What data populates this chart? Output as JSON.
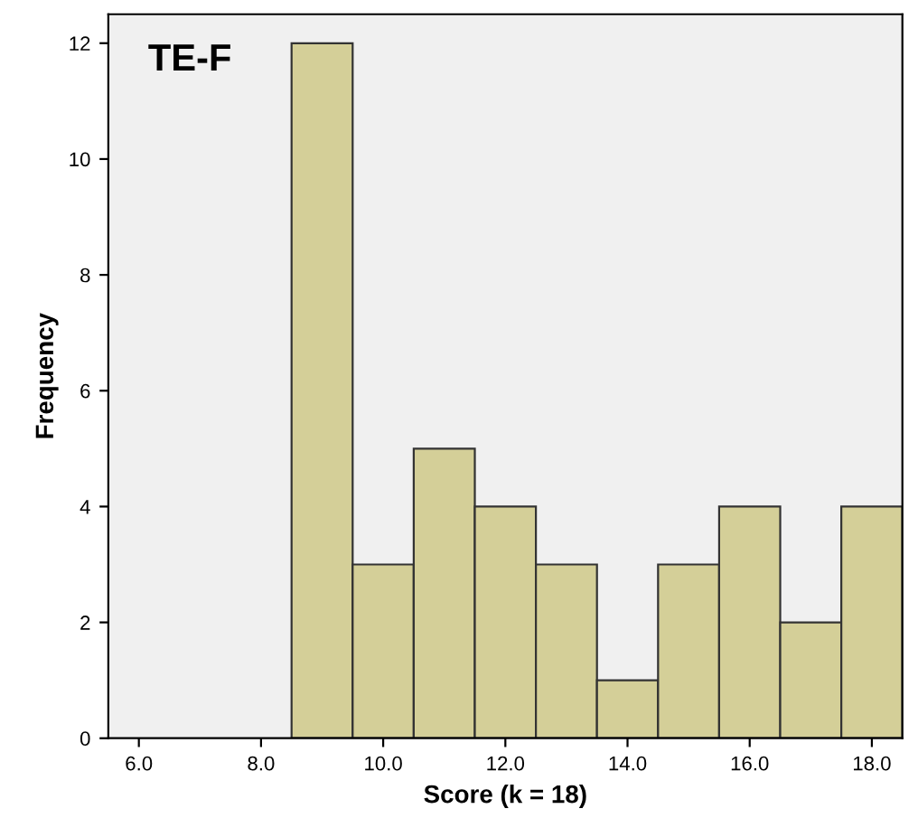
{
  "chart_data": {
    "type": "histogram",
    "title": "TE-F",
    "xlabel": "Score (k = 18)",
    "ylabel": "Frequency",
    "bins": [
      8.5,
      9.5,
      10.5,
      11.5,
      12.5,
      13.5,
      14.5,
      15.5,
      16.5,
      17.5,
      18.5
    ],
    "values": [
      12,
      3,
      5,
      4,
      3,
      1,
      3,
      4,
      2,
      4
    ],
    "color": "#d4cf98",
    "xlim": [
      5.5,
      18.5
    ],
    "ylim": [
      0,
      12.5
    ],
    "xticks": [
      {
        "value": 6,
        "label": "6.0"
      },
      {
        "value": 8,
        "label": "8.0"
      },
      {
        "value": 10,
        "label": "10.0"
      },
      {
        "value": 12,
        "label": "12.0"
      },
      {
        "value": 14,
        "label": "14.0"
      },
      {
        "value": 16,
        "label": "16.0"
      },
      {
        "value": 18,
        "label": "18.0"
      }
    ],
    "yticks": [
      0,
      2,
      4,
      6,
      8,
      10,
      12
    ],
    "grid": false
  }
}
